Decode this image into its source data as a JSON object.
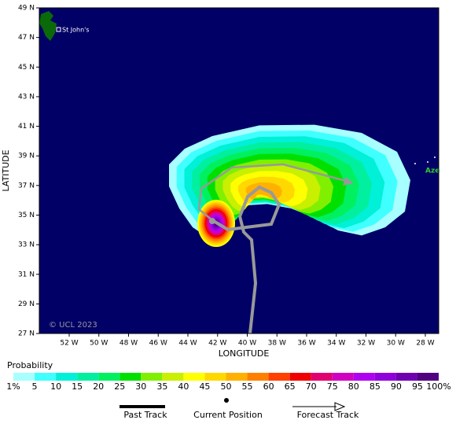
{
  "map": {
    "y_axis_title": "LATITUDE",
    "x_axis_title": "LONGITUDE",
    "lat_labels": [
      "49 N",
      "47 N",
      "45 N",
      "43 N",
      "41 N",
      "39 N",
      "37 N",
      "35 N",
      "33 N",
      "31 N",
      "29 N",
      "27 N"
    ],
    "lon_labels": [
      "52 W",
      "50 W",
      "48 W",
      "46 W",
      "44 W",
      "42 W",
      "40 W",
      "38 W",
      "36 W",
      "34 W",
      "32 W",
      "30 W",
      "28 W"
    ],
    "places": [
      "St John's",
      "Aze"
    ],
    "copyright": "© UCL 2023"
  },
  "legend": {
    "title": "Probability",
    "labels": [
      "1%",
      "5",
      "10",
      "15",
      "20",
      "25",
      "30",
      "35",
      "40",
      "45",
      "50",
      "55",
      "60",
      "65",
      "70",
      "75",
      "80",
      "85",
      "90",
      "95",
      "100%"
    ],
    "colors": [
      "#a8ffff",
      "#40ffff",
      "#00f0d8",
      "#00f0a0",
      "#00f060",
      "#00e000",
      "#80f000",
      "#c8f000",
      "#ffff00",
      "#ffd800",
      "#ffb000",
      "#ff8000",
      "#ff4000",
      "#f00000",
      "#e00070",
      "#d000c0",
      "#b000f0",
      "#9000d8",
      "#7000b0",
      "#500080"
    ],
    "past_track": "Past Track",
    "current_position": "Current Position",
    "forecast_track": "Forecast Track"
  }
}
